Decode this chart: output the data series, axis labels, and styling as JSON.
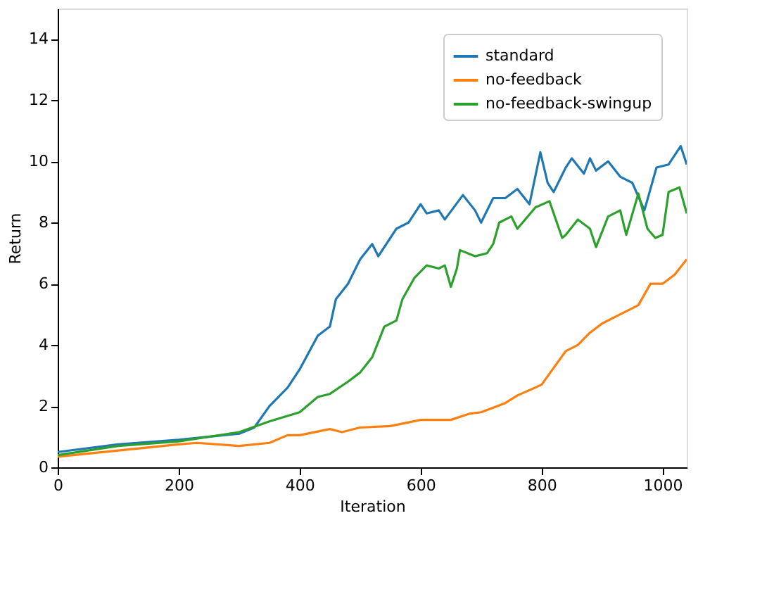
{
  "chart_data": {
    "type": "line",
    "xlabel": "Iteration",
    "ylabel": "Return",
    "xlim": [
      0,
      1040
    ],
    "ylim": [
      0,
      15
    ],
    "xticks": [
      0,
      200,
      400,
      600,
      800,
      1000
    ],
    "yticks": [
      0,
      2,
      4,
      6,
      8,
      10,
      12,
      14
    ],
    "grid": false,
    "legend": "top right",
    "line_style": "solid",
    "marker": "none",
    "series": [
      {
        "name": "standard",
        "color": "#1f77b4",
        "x": [
          0,
          100,
          200,
          300,
          325,
          350,
          380,
          400,
          430,
          450,
          460,
          480,
          500,
          520,
          530,
          550,
          560,
          580,
          600,
          610,
          630,
          640,
          670,
          690,
          700,
          720,
          740,
          760,
          780,
          798,
          810,
          820,
          840,
          850,
          870,
          880,
          890,
          910,
          930,
          950,
          970,
          990,
          1010,
          1030,
          1040
        ],
        "values": [
          0.5,
          0.75,
          0.9,
          1.1,
          1.3,
          2.0,
          2.6,
          3.2,
          4.3,
          4.6,
          5.5,
          6.0,
          6.8,
          7.3,
          6.9,
          7.5,
          7.8,
          8.0,
          8.6,
          8.3,
          8.4,
          8.1,
          8.9,
          8.4,
          8.0,
          8.8,
          8.8,
          9.1,
          8.6,
          10.3,
          9.3,
          9.0,
          9.8,
          10.1,
          9.6,
          10.1,
          9.7,
          10.0,
          9.5,
          9.3,
          8.4,
          9.8,
          9.9,
          10.5,
          9.9
        ]
      },
      {
        "name": "no-feedback",
        "color": "#ff7f0e",
        "x": [
          0,
          100,
          200,
          230,
          300,
          350,
          380,
          400,
          450,
          470,
          500,
          550,
          600,
          650,
          680,
          700,
          740,
          760,
          800,
          840,
          860,
          880,
          900,
          930,
          960,
          980,
          1000,
          1020,
          1040
        ],
        "values": [
          0.35,
          0.55,
          0.75,
          0.8,
          0.7,
          0.8,
          1.05,
          1.05,
          1.25,
          1.15,
          1.3,
          1.35,
          1.55,
          1.55,
          1.75,
          1.8,
          2.1,
          2.35,
          2.7,
          3.8,
          4.0,
          4.4,
          4.7,
          5.0,
          5.3,
          6.0,
          6.0,
          6.3,
          6.8
        ]
      },
      {
        "name": "no-feedback-swingup",
        "color": "#2ca02c",
        "x": [
          0,
          100,
          200,
          300,
          350,
          400,
          430,
          450,
          480,
          500,
          520,
          540,
          560,
          570,
          590,
          610,
          630,
          640,
          650,
          660,
          665,
          690,
          710,
          720,
          730,
          750,
          760,
          790,
          813,
          834,
          840,
          860,
          880,
          890,
          910,
          930,
          940,
          960,
          975,
          988,
          1000,
          1010,
          1028,
          1040
        ],
        "values": [
          0.4,
          0.7,
          0.85,
          1.15,
          1.5,
          1.8,
          2.3,
          2.4,
          2.8,
          3.1,
          3.6,
          4.6,
          4.8,
          5.5,
          6.2,
          6.6,
          6.5,
          6.6,
          5.9,
          6.5,
          7.1,
          6.9,
          7.0,
          7.3,
          8.0,
          8.2,
          7.8,
          8.5,
          8.7,
          7.5,
          7.6,
          8.1,
          7.8,
          7.2,
          8.2,
          8.4,
          7.6,
          8.95,
          7.8,
          7.5,
          7.6,
          9.0,
          9.15,
          8.3
        ]
      }
    ]
  }
}
